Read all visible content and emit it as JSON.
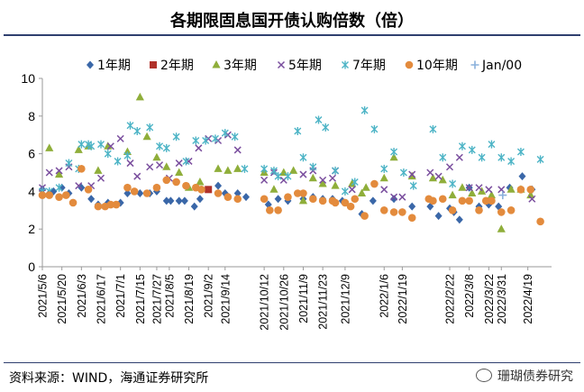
{
  "header": {
    "title": "各期限固息国开债认购倍数（倍）"
  },
  "footer": {
    "source": "资料来源：WIND，海通证券研究所",
    "watermark": "珊瑚债券研究"
  },
  "chart_data": {
    "type": "scatter",
    "title": "各期限固息国开债认购倍数（倍）",
    "xlabel": "",
    "ylabel": "",
    "ylim": [
      0,
      10
    ],
    "yticks": [
      0,
      2,
      4,
      6,
      8,
      10
    ],
    "grid": false,
    "legend_position": "top",
    "x_start": "2021/5/6",
    "x_end": "2022/5/6",
    "xtick_labels": [
      "2021/5/6",
      "2021/5/20",
      "2021/6/3",
      "2021/6/17",
      "2021/7/1",
      "2021/7/15",
      "2021/7/27",
      "2021/8/5",
      "2021/8/19",
      "2021/9/2",
      "2021/9/14",
      "2021/10/12",
      "2021/10/26",
      "2021/11/9",
      "2021/11/23",
      "2021/12/9",
      "2022/1/6",
      "2022/1/19",
      "2022/2/22",
      "2022/3/8",
      "2022/3/22",
      "2022/3/31",
      "2022/4/19"
    ],
    "series": [
      {
        "name": "1年期",
        "marker": "diamond",
        "color": "#3a67a8",
        "points": [
          [
            "2021/5/6",
            4.1
          ],
          [
            "2021/5/11",
            3.9
          ],
          [
            "2021/5/14",
            4.0
          ],
          [
            "2021/5/20",
            4.2
          ],
          [
            "2021/5/25",
            3.9
          ],
          [
            "2021/6/3",
            4.2
          ],
          [
            "2021/6/10",
            3.6
          ],
          [
            "2021/6/15",
            3.3
          ],
          [
            "2021/6/22",
            3.4
          ],
          [
            "2021/7/1",
            3.4
          ],
          [
            "2021/7/6",
            3.9
          ],
          [
            "2021/7/15",
            3.9
          ],
          [
            "2021/7/22",
            3.9
          ],
          [
            "2021/7/27",
            4.0
          ],
          [
            "2021/8/3",
            3.5
          ],
          [
            "2021/8/6",
            3.5
          ],
          [
            "2021/8/12",
            3.5
          ],
          [
            "2021/8/16",
            3.5
          ],
          [
            "2021/8/23",
            3.2
          ],
          [
            "2021/8/27",
            3.6
          ],
          [
            "2021/9/9",
            4.3
          ],
          [
            "2021/9/14",
            3.9
          ],
          [
            "2021/9/23",
            3.9
          ],
          [
            "2021/9/29",
            3.7
          ],
          [
            "2021/10/15",
            3.3
          ],
          [
            "2021/10/22",
            3.6
          ],
          [
            "2021/10/29",
            3.5
          ],
          [
            "2021/11/9",
            3.6
          ],
          [
            "2021/11/16",
            3.7
          ],
          [
            "2021/11/23",
            3.6
          ],
          [
            "2021/11/30",
            3.6
          ],
          [
            "2021/12/7",
            3.5
          ],
          [
            "2021/12/21",
            2.8
          ],
          [
            "2021/12/29",
            3.5
          ],
          [
            "2022/1/13",
            3.6
          ],
          [
            "2022/1/26",
            3.2
          ],
          [
            "2022/2/8",
            3.2
          ],
          [
            "2022/2/14",
            2.7
          ],
          [
            "2022/2/22",
            3.1
          ],
          [
            "2022/2/25",
            2.9
          ],
          [
            "2022/3/1",
            2.5
          ],
          [
            "2022/3/8",
            4.2
          ],
          [
            "2022/3/15",
            3.2
          ],
          [
            "2022/3/22",
            3.3
          ],
          [
            "2022/3/29",
            3.2
          ],
          [
            "2022/4/6",
            4.2
          ],
          [
            "2022/4/15",
            4.8
          ],
          [
            "2022/4/22",
            4.1
          ]
        ]
      },
      {
        "name": "2年期",
        "marker": "square",
        "color": "#b0312a",
        "points": [
          [
            "2021/9/2",
            4.1
          ]
        ]
      },
      {
        "name": "3年期",
        "marker": "triangle",
        "color": "#8fae3a",
        "points": [
          [
            "2021/5/11",
            6.3
          ],
          [
            "2021/5/18",
            4.9
          ],
          [
            "2021/6/1",
            6.2
          ],
          [
            "2021/6/8",
            6.4
          ],
          [
            "2021/6/15",
            5.1
          ],
          [
            "2021/6/22",
            6.4
          ],
          [
            "2021/7/6",
            6.1
          ],
          [
            "2021/7/15",
            9.0
          ],
          [
            "2021/7/20",
            6.9
          ],
          [
            "2021/7/27",
            5.8
          ],
          [
            "2021/8/3",
            5.3
          ],
          [
            "2021/8/12",
            5.0
          ],
          [
            "2021/8/19",
            4.2
          ],
          [
            "2021/8/27",
            4.5
          ],
          [
            "2021/9/9",
            5.2
          ],
          [
            "2021/9/16",
            5.1
          ],
          [
            "2021/9/23",
            5.2
          ],
          [
            "2021/10/12",
            5.0
          ],
          [
            "2021/10/19",
            4.1
          ],
          [
            "2021/10/26",
            5.0
          ],
          [
            "2021/11/2",
            5.1
          ],
          [
            "2021/11/9",
            3.5
          ],
          [
            "2021/11/16",
            4.7
          ],
          [
            "2021/11/23",
            4.4
          ],
          [
            "2021/12/2",
            4.3
          ],
          [
            "2021/12/14",
            4.4
          ],
          [
            "2021/12/21",
            3.9
          ],
          [
            "2021/12/24",
            4.2
          ],
          [
            "2022/1/6",
            4.7
          ],
          [
            "2022/1/13",
            5.8
          ],
          [
            "2022/1/26",
            4.8
          ],
          [
            "2022/2/10",
            4.7
          ],
          [
            "2022/2/17",
            4.6
          ],
          [
            "2022/2/24",
            3.8
          ],
          [
            "2022/3/3",
            4.2
          ],
          [
            "2022/3/10",
            3.9
          ],
          [
            "2022/3/17",
            4.0
          ],
          [
            "2022/3/24",
            3.8
          ],
          [
            "2022/3/31",
            2.0
          ],
          [
            "2022/4/7",
            4.1
          ],
          [
            "2022/4/14",
            4.1
          ],
          [
            "2022/4/21",
            3.8
          ]
        ]
      },
      {
        "name": "5年期",
        "marker": "x",
        "color": "#7a4e9e",
        "points": [
          [
            "2021/5/6",
            4.2
          ],
          [
            "2021/5/11",
            5.0
          ],
          [
            "2021/5/18",
            5.1
          ],
          [
            "2021/5/25",
            5.3
          ],
          [
            "2021/6/1",
            4.3
          ],
          [
            "2021/6/10",
            4.3
          ],
          [
            "2021/6/17",
            4.7
          ],
          [
            "2021/6/24",
            6.4
          ],
          [
            "2021/7/1",
            6.8
          ],
          [
            "2021/7/8",
            5.5
          ],
          [
            "2021/7/13",
            4.8
          ],
          [
            "2021/7/22",
            5.3
          ],
          [
            "2021/7/29",
            5.4
          ],
          [
            "2021/8/5",
            4.7
          ],
          [
            "2021/8/12",
            5.5
          ],
          [
            "2021/8/19",
            5.6
          ],
          [
            "2021/8/26",
            6.3
          ],
          [
            "2021/9/2",
            6.8
          ],
          [
            "2021/9/9",
            6.7
          ],
          [
            "2021/9/16",
            7.0
          ],
          [
            "2021/9/23",
            6.2
          ],
          [
            "2021/10/12",
            4.6
          ],
          [
            "2021/10/19",
            5.0
          ],
          [
            "2021/10/26",
            4.6
          ],
          [
            "2021/11/9",
            4.9
          ],
          [
            "2021/11/16",
            5.1
          ],
          [
            "2021/11/23",
            4.6
          ],
          [
            "2021/11/30",
            4.7
          ],
          [
            "2021/12/2",
            5.1
          ],
          [
            "2021/12/14",
            4.1
          ],
          [
            "2022/1/6",
            4.1
          ],
          [
            "2022/1/13",
            3.7
          ],
          [
            "2022/1/19",
            3.7
          ],
          [
            "2022/1/26",
            4.9
          ],
          [
            "2022/2/8",
            5.0
          ],
          [
            "2022/2/14",
            4.8
          ],
          [
            "2022/2/22",
            5.3
          ],
          [
            "2022/3/1",
            5.8
          ],
          [
            "2022/3/8",
            4.2
          ],
          [
            "2022/3/15",
            4.2
          ],
          [
            "2022/3/22",
            4.1
          ],
          [
            "2022/3/31",
            4.1
          ],
          [
            "2022/4/22",
            3.6
          ]
        ]
      },
      {
        "name": "7年期",
        "marker": "star",
        "color": "#4db4c6",
        "points": [
          [
            "2021/5/6",
            4.0
          ],
          [
            "2021/5/11",
            4.0
          ],
          [
            "2021/5/18",
            4.2
          ],
          [
            "2021/5/25",
            5.5
          ],
          [
            "2021/6/1",
            5.2
          ],
          [
            "2021/6/3",
            6.5
          ],
          [
            "2021/6/8",
            6.5
          ],
          [
            "2021/6/10",
            6.4
          ],
          [
            "2021/6/17",
            6.5
          ],
          [
            "2021/6/22",
            6.0
          ],
          [
            "2021/6/29",
            5.6
          ],
          [
            "2021/7/6",
            5.9
          ],
          [
            "2021/7/8",
            7.5
          ],
          [
            "2021/7/13",
            7.2
          ],
          [
            "2021/7/22",
            7.4
          ],
          [
            "2021/7/29",
            6.4
          ],
          [
            "2021/8/3",
            6.3
          ],
          [
            "2021/8/10",
            6.9
          ],
          [
            "2021/8/17",
            5.6
          ],
          [
            "2021/8/24",
            6.7
          ],
          [
            "2021/8/31",
            6.7
          ],
          [
            "2021/9/7",
            6.8
          ],
          [
            "2021/9/14",
            7.1
          ],
          [
            "2021/9/21",
            6.9
          ],
          [
            "2021/9/28",
            5.2
          ],
          [
            "2021/10/12",
            5.2
          ],
          [
            "2021/10/19",
            5.1
          ],
          [
            "2021/10/22",
            4.8
          ],
          [
            "2021/10/29",
            4.8
          ],
          [
            "2021/11/5",
            7.2
          ],
          [
            "2021/11/9",
            5.8
          ],
          [
            "2021/11/16",
            5.3
          ],
          [
            "2021/11/20",
            7.8
          ],
          [
            "2021/11/25",
            7.4
          ],
          [
            "2021/12/2",
            5.1
          ],
          [
            "2021/12/9",
            4.0
          ],
          [
            "2021/12/16",
            4.5
          ],
          [
            "2021/12/23",
            8.3
          ],
          [
            "2021/12/30",
            7.3
          ],
          [
            "2022/1/6",
            5.2
          ],
          [
            "2022/1/13",
            6.1
          ],
          [
            "2022/1/20",
            5.0
          ],
          [
            "2022/1/27",
            4.3
          ],
          [
            "2022/2/10",
            7.3
          ],
          [
            "2022/2/17",
            5.8
          ],
          [
            "2022/2/24",
            4.4
          ],
          [
            "2022/3/3",
            6.4
          ],
          [
            "2022/3/10",
            6.2
          ],
          [
            "2022/3/17",
            5.8
          ],
          [
            "2022/3/24",
            6.5
          ],
          [
            "2022/3/31",
            5.8
          ],
          [
            "2022/4/7",
            5.6
          ],
          [
            "2022/4/14",
            6.1
          ],
          [
            "2022/4/28",
            5.7
          ]
        ]
      },
      {
        "name": "10年期",
        "marker": "circle",
        "color": "#e38b3d",
        "points": [
          [
            "2021/5/6",
            3.8
          ],
          [
            "2021/5/11",
            3.8
          ],
          [
            "2021/5/18",
            3.7
          ],
          [
            "2021/5/23",
            3.8
          ],
          [
            "2021/5/28",
            3.4
          ],
          [
            "2021/6/3",
            5.2
          ],
          [
            "2021/6/8",
            4.1
          ],
          [
            "2021/6/15",
            3.2
          ],
          [
            "2021/6/20",
            3.2
          ],
          [
            "2021/6/24",
            3.3
          ],
          [
            "2021/6/28",
            3.3
          ],
          [
            "2021/7/6",
            4.2
          ],
          [
            "2021/7/11",
            4.0
          ],
          [
            "2021/7/20",
            3.9
          ],
          [
            "2021/7/27",
            4.2
          ],
          [
            "2021/8/3",
            4.6
          ],
          [
            "2021/8/10",
            4.5
          ],
          [
            "2021/8/17",
            4.3
          ],
          [
            "2021/8/24",
            4.2
          ],
          [
            "2021/8/28",
            4.1
          ],
          [
            "2021/9/9",
            3.9
          ],
          [
            "2021/9/16",
            3.7
          ],
          [
            "2021/9/23",
            3.6
          ],
          [
            "2021/10/12",
            3.6
          ],
          [
            "2021/10/16",
            3.0
          ],
          [
            "2021/10/22",
            3.0
          ],
          [
            "2021/10/29",
            3.7
          ],
          [
            "2021/11/5",
            3.9
          ],
          [
            "2021/11/9",
            3.9
          ],
          [
            "2021/11/16",
            3.6
          ],
          [
            "2021/11/23",
            3.5
          ],
          [
            "2021/11/30",
            3.5
          ],
          [
            "2021/12/2",
            3.4
          ],
          [
            "2021/12/9",
            3.4
          ],
          [
            "2021/12/13",
            3.2
          ],
          [
            "2021/12/16",
            3.6
          ],
          [
            "2021/12/23",
            2.7
          ],
          [
            "2021/12/30",
            4.4
          ],
          [
            "2022/1/6",
            3.0
          ],
          [
            "2022/1/13",
            2.9
          ],
          [
            "2022/1/19",
            2.9
          ],
          [
            "2022/1/26",
            2.6
          ],
          [
            "2022/2/7",
            3.6
          ],
          [
            "2022/2/10",
            3.5
          ],
          [
            "2022/2/17",
            3.6
          ],
          [
            "2022/2/24",
            3.0
          ],
          [
            "2022/3/3",
            3.5
          ],
          [
            "2022/3/8",
            3.5
          ],
          [
            "2022/3/15",
            3.0
          ],
          [
            "2022/3/20",
            3.5
          ],
          [
            "2022/3/24",
            3.5
          ],
          [
            "2022/3/31",
            2.9
          ],
          [
            "2022/4/7",
            3.0
          ],
          [
            "2022/4/14",
            4.1
          ],
          [
            "2022/4/21",
            4.1
          ],
          [
            "2022/4/28",
            2.4
          ]
        ]
      },
      {
        "name": "Jan/00",
        "marker": "plus",
        "color": "#8ab0dc",
        "points": [
          [
            "2022/4/1",
            3.8
          ]
        ]
      }
    ]
  }
}
